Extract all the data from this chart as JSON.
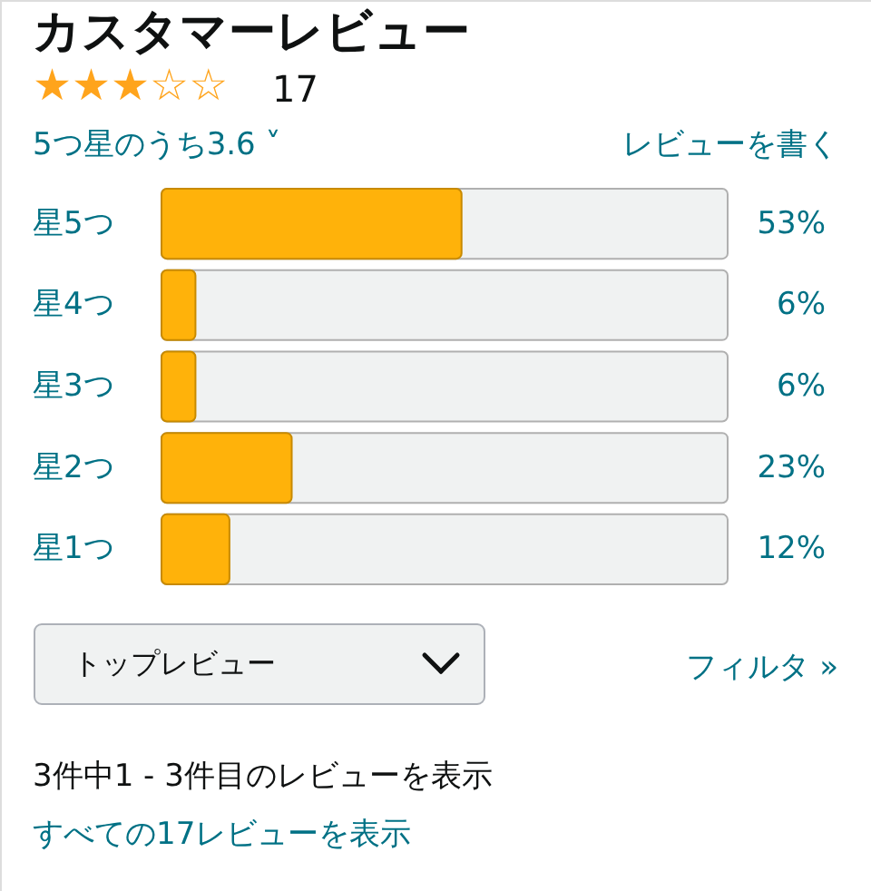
{
  "chart_data": {
    "type": "bar",
    "orientation": "horizontal",
    "title": "カスタマーレビュー",
    "categories": [
      "星5つ",
      "星4つ",
      "星3つ",
      "星2つ",
      "星1つ"
    ],
    "values": [
      53,
      6,
      6,
      23,
      12
    ],
    "value_labels": [
      "53%",
      "6%",
      "6%",
      "23%",
      "12%"
    ],
    "color": "#ffb20a",
    "xlim": [
      0,
      100
    ],
    "annotations": [
      "★★★☆☆",
      "17",
      "5つ星のうち3.6 ˅",
      "レビューを書く",
      "トップレビュー",
      "フィルタ »",
      "3件中1 - 3件目のレビューを表示",
      "すべての17レビューを表示"
    ]
  }
}
